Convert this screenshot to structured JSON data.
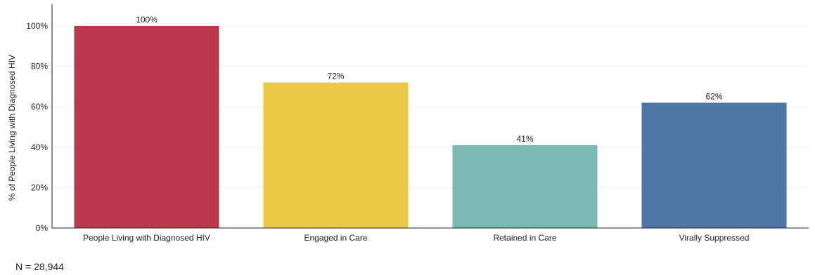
{
  "chart_data": {
    "type": "bar",
    "categories": [
      "People Living with Diagnosed HIV",
      "Engaged in Care",
      "Retained in Care",
      "Virally Suppressed"
    ],
    "values": [
      100,
      72,
      41,
      62
    ],
    "value_labels": [
      "100%",
      "72%",
      "41%",
      "62%"
    ],
    "colors": [
      "#B83A4B",
      "#EAC945",
      "#7AB8B3",
      "#4E77A5"
    ],
    "ylabel": "% of People Living with Diagnosed HIV",
    "ylim": [
      0,
      100
    ],
    "y_ticks": [
      0,
      20,
      40,
      60,
      80,
      100
    ],
    "y_tick_labels": [
      "0%",
      "20%",
      "40%",
      "60%",
      "80%",
      "100%"
    ],
    "grid": true
  },
  "footnote": "N = 28,944"
}
